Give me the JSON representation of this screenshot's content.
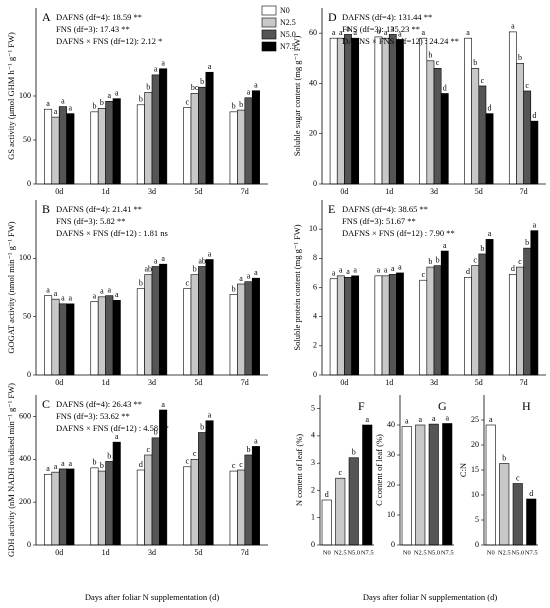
{
  "chart_data": [
    {
      "type": "bar",
      "panel": "A",
      "ylabel": "GS activity (μmol GHM h⁻¹ g⁻¹ FW)",
      "annotations": [
        "DAFNS (df=4): 18.59 **",
        "FNS (df=3): 17.43 **",
        "DAFNS × FNS (df=12): 2.12 *"
      ],
      "categories": [
        "0d",
        "1d",
        "3d",
        "5d",
        "7d"
      ],
      "ylim": [
        0,
        200
      ],
      "yticks": [
        0,
        50,
        100
      ],
      "series": [
        {
          "name": "N0",
          "color": "#ffffff",
          "values": [
            85,
            82,
            90,
            87,
            82
          ],
          "letters": [
            "a",
            "b",
            "b",
            "c",
            "b"
          ]
        },
        {
          "name": "N2.5",
          "color": "#c8c8c8",
          "values": [
            76,
            86,
            104,
            103,
            84
          ],
          "letters": [
            "a",
            "b",
            "b",
            "bc",
            "b"
          ]
        },
        {
          "name": "N5.0",
          "color": "#555555",
          "values": [
            88,
            94,
            124,
            110,
            98
          ],
          "letters": [
            "a",
            "a",
            "a",
            "b",
            "a"
          ]
        },
        {
          "name": "N7.5",
          "color": "#000000",
          "values": [
            80,
            97,
            131,
            127,
            106
          ],
          "letters": [
            "a",
            "a",
            "a",
            "a",
            "a"
          ]
        }
      ]
    },
    {
      "type": "bar",
      "panel": "B",
      "ylabel": "GOGAT activity (nmol min⁻¹ g⁻¹ FW)",
      "annotations": [
        "DAFNS (df=4): 21.41 **",
        "FNS (df=3): 5.82 **",
        "DAFNS × FNS (df=12) : 1.81 ns"
      ],
      "categories": [
        "0d",
        "1d",
        "3d",
        "5d",
        "7d"
      ],
      "ylim": [
        0,
        150
      ],
      "yticks": [
        0,
        50,
        100
      ],
      "series": [
        {
          "color": "#ffffff",
          "values": [
            68,
            63,
            74,
            74,
            69
          ],
          "letters": [
            "a",
            "a",
            "b",
            "c",
            "b"
          ]
        },
        {
          "color": "#c8c8c8",
          "values": [
            65,
            67,
            86,
            86,
            78
          ],
          "letters": [
            "a",
            "a",
            "ab",
            "b",
            "a"
          ]
        },
        {
          "color": "#555555",
          "values": [
            61,
            68,
            93,
            93,
            80
          ],
          "letters": [
            "a",
            "a",
            "a",
            "ab",
            "a"
          ]
        },
        {
          "color": "#000000",
          "values": [
            61,
            64,
            95,
            99,
            83
          ],
          "letters": [
            "a",
            "a",
            "a",
            "a",
            "a"
          ]
        }
      ]
    },
    {
      "type": "bar",
      "panel": "C",
      "ylabel": "GDH activity (nM NADH oxidised min⁻¹ g⁻¹ FW)",
      "xlabel": "Days after foliar N supplementation (d)",
      "annotations": [
        "DAFNS (df=4): 26.43 **",
        "FNS (df=3): 53.62 **",
        "DAFNS × FNS (df=12) : 4.58 **"
      ],
      "categories": [
        "0d",
        "1d",
        "3d",
        "5d",
        "7d"
      ],
      "ylim": [
        0,
        700
      ],
      "yticks": [
        0,
        200,
        400,
        600
      ],
      "series": [
        {
          "color": "#ffffff",
          "values": [
            330,
            360,
            350,
            365,
            345
          ],
          "letters": [
            "a",
            "b",
            "d",
            "c",
            "c"
          ]
        },
        {
          "color": "#c8c8c8",
          "values": [
            340,
            345,
            420,
            400,
            350
          ],
          "letters": [
            "a",
            "b",
            "c",
            "c",
            "c"
          ]
        },
        {
          "color": "#555555",
          "values": [
            355,
            390,
            500,
            525,
            420
          ],
          "letters": [
            "a",
            "b",
            "b",
            "b",
            "b"
          ]
        },
        {
          "color": "#000000",
          "values": [
            355,
            480,
            630,
            580,
            460
          ],
          "letters": [
            "a",
            "a",
            "a",
            "a",
            "a"
          ]
        }
      ]
    },
    {
      "type": "bar",
      "panel": "D",
      "ylabel": "Soluble sugar content (mg g⁻¹ FW)",
      "annotations": [
        "DAFNS (df=4): 131.44 **",
        "FNS (df=3): 135.23 **",
        "DAFNS × FNS (df=12) : 24.24 **"
      ],
      "categories": [
        "0d",
        "1d",
        "3d",
        "5d",
        "7d"
      ],
      "ylim": [
        0,
        70
      ],
      "yticks": [
        0,
        20,
        40,
        60
      ],
      "series": [
        {
          "color": "#ffffff",
          "values": [
            58,
            58.5,
            58,
            58,
            60.5
          ],
          "letters": [
            "a",
            "a",
            "a",
            "a",
            "a"
          ]
        },
        {
          "color": "#c8c8c8",
          "values": [
            58,
            58,
            49,
            46,
            48
          ],
          "letters": [
            "a",
            "a",
            "b",
            "b",
            "b"
          ]
        },
        {
          "color": "#555555",
          "values": [
            59.5,
            59.5,
            46,
            39,
            37
          ],
          "letters": [
            "a",
            "a",
            "c",
            "c",
            "c"
          ]
        },
        {
          "color": "#000000",
          "values": [
            58,
            57.5,
            36,
            28,
            25
          ],
          "letters": [
            "a",
            "a",
            "d",
            "d",
            "d"
          ]
        }
      ]
    },
    {
      "type": "bar",
      "panel": "E",
      "ylabel": "Soluble protein content (mg g⁻¹ FW)",
      "annotations": [
        "DAFNS (df=4): 38.65 **",
        "FNS (df=3): 51.67 **",
        "DAFNS × FNS (df=12) : 7.90 **"
      ],
      "categories": [
        "0d",
        "1d",
        "3d",
        "5d",
        "7d"
      ],
      "ylim": [
        0,
        12
      ],
      "yticks": [
        0,
        2,
        4,
        6,
        8,
        10
      ],
      "series": [
        {
          "color": "#ffffff",
          "values": [
            6.6,
            6.8,
            6.5,
            6.7,
            6.9
          ],
          "letters": [
            "a",
            "a",
            "c",
            "d",
            "d"
          ]
        },
        {
          "color": "#c8c8c8",
          "values": [
            6.8,
            6.8,
            7.4,
            7.5,
            7.4
          ],
          "letters": [
            "a",
            "a",
            "b",
            "c",
            "c"
          ]
        },
        {
          "color": "#555555",
          "values": [
            6.7,
            6.9,
            7.5,
            8.3,
            8.7
          ],
          "letters": [
            "a",
            "a",
            "b",
            "b",
            "b"
          ]
        },
        {
          "color": "#000000",
          "values": [
            6.8,
            7.0,
            8.5,
            9.3,
            9.9
          ],
          "letters": [
            "a",
            "a",
            "a",
            "a",
            "a"
          ]
        }
      ]
    },
    {
      "type": "bar",
      "panel": "F",
      "ylabel": "N content of leaf (%)",
      "categories": [
        "N0",
        "N2.5",
        "N5.0",
        "N7.5"
      ],
      "ylim": [
        0,
        5.5
      ],
      "yticks": [
        0,
        1,
        2,
        3,
        4,
        5
      ],
      "values": [
        1.65,
        2.45,
        3.2,
        4.4
      ],
      "colors": [
        "#ffffff",
        "#c8c8c8",
        "#555555",
        "#000000"
      ],
      "letters": [
        "d",
        "c",
        "b",
        "a"
      ]
    },
    {
      "type": "bar",
      "panel": "G",
      "ylabel": "C content of leaf (%)",
      "xlabel": "Days after foliar N supplementation (d)",
      "categories": [
        "N0",
        "N2.5",
        "N5.0",
        "N7.5"
      ],
      "ylim": [
        0,
        50
      ],
      "yticks": [
        0,
        10,
        20,
        30,
        40
      ],
      "values": [
        39.5,
        40,
        40.3,
        40.5
      ],
      "colors": [
        "#ffffff",
        "#c8c8c8",
        "#555555",
        "#000000"
      ],
      "letters": [
        "a",
        "a",
        "a",
        "a"
      ]
    },
    {
      "type": "bar",
      "panel": "H",
      "ylabel": "C:N",
      "categories": [
        "N0",
        "N2.5",
        "N5.0",
        "N7.5"
      ],
      "ylim": [
        0,
        30
      ],
      "yticks": [
        0,
        5,
        10,
        15,
        20,
        25
      ],
      "values": [
        24,
        16.3,
        12.3,
        9.2
      ],
      "colors": [
        "#ffffff",
        "#c8c8c8",
        "#555555",
        "#000000"
      ],
      "letters": [
        "a",
        "b",
        "c",
        "d"
      ]
    }
  ]
}
